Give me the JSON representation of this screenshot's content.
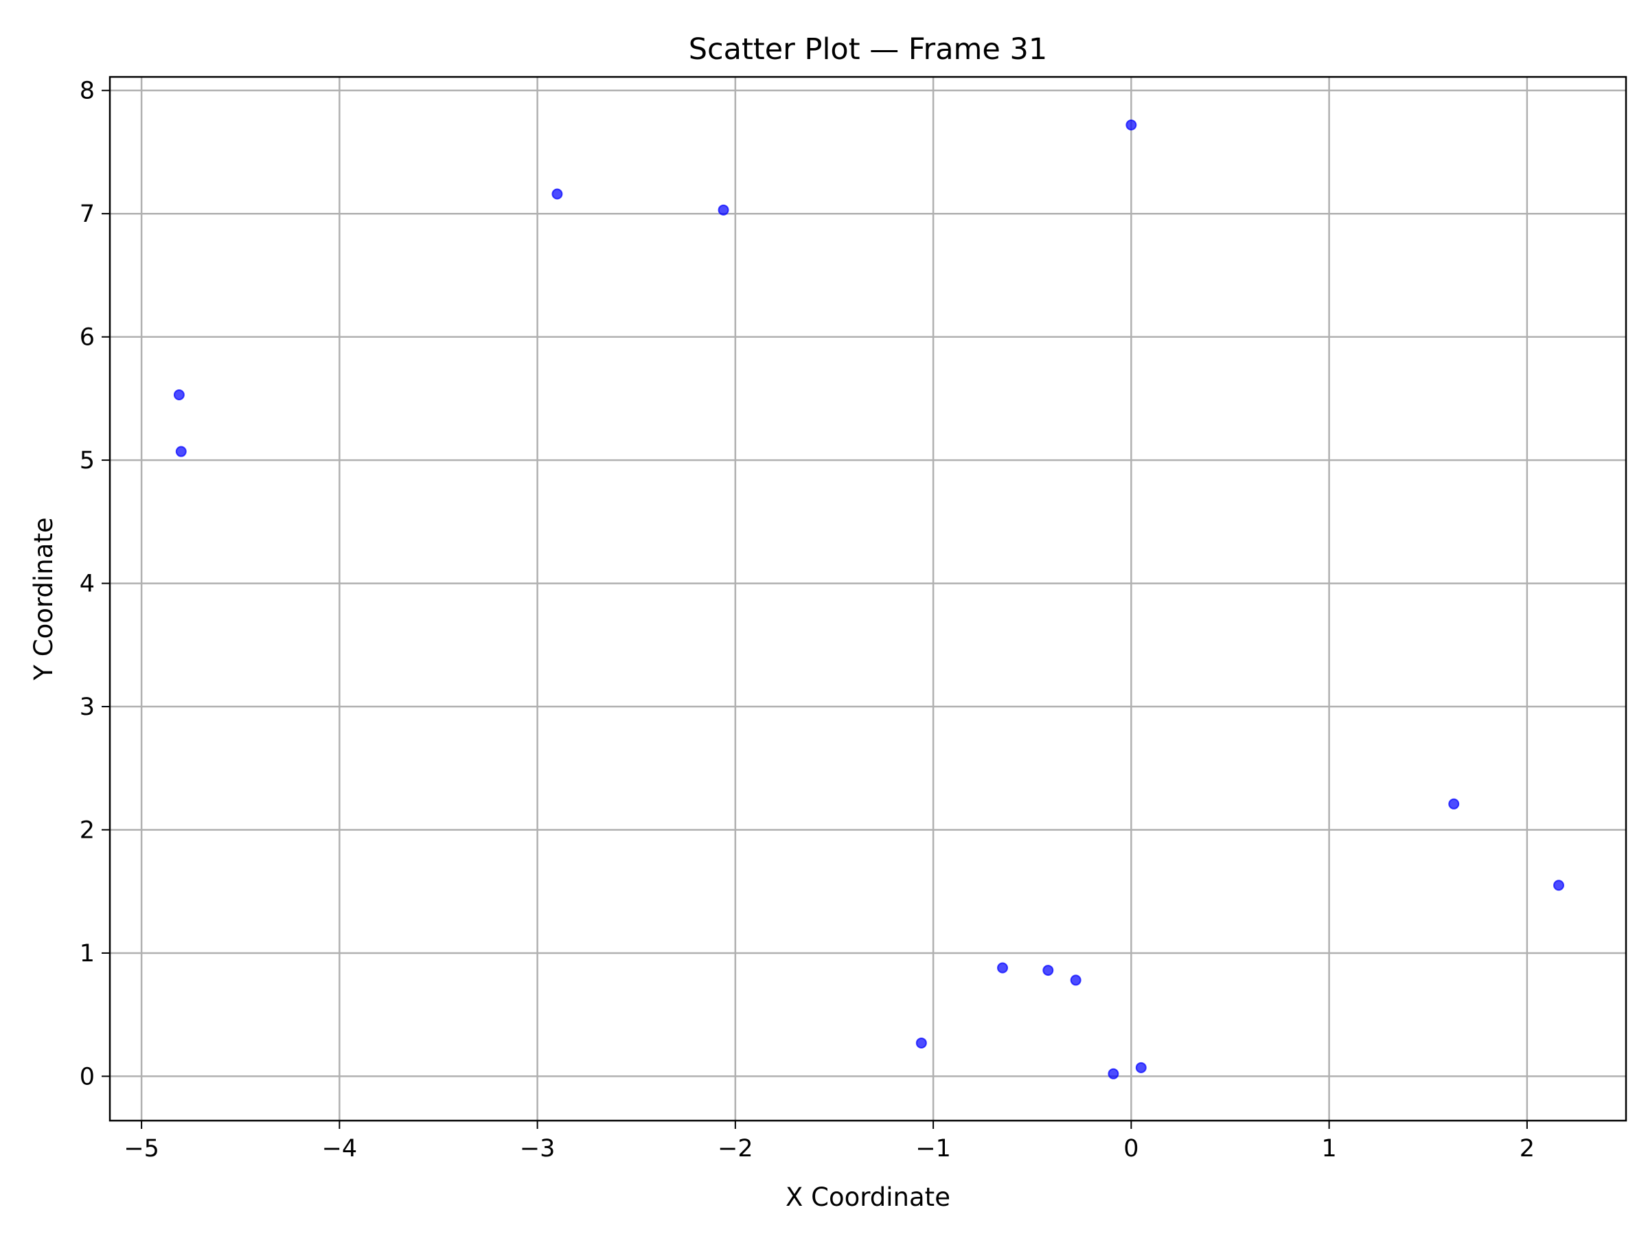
{
  "chart_data": {
    "type": "scatter",
    "title": "Scatter Plot — Frame 31",
    "xlabel": "X Coordinate",
    "ylabel": "Y Coordinate",
    "xlim": [
      -5.16,
      2.5
    ],
    "ylim": [
      -0.36,
      8.11
    ],
    "grid": true,
    "marker_color": "#0000ff",
    "marker_opacity": 0.7,
    "x_ticks": [
      {
        "value": -5,
        "label": "−5"
      },
      {
        "value": -4,
        "label": "−4"
      },
      {
        "value": -3,
        "label": "−3"
      },
      {
        "value": -2,
        "label": "−2"
      },
      {
        "value": -1,
        "label": "−1"
      },
      {
        "value": 0,
        "label": "0"
      },
      {
        "value": 1,
        "label": "1"
      },
      {
        "value": 2,
        "label": "2"
      }
    ],
    "y_ticks": [
      {
        "value": 0,
        "label": "0"
      },
      {
        "value": 1,
        "label": "1"
      },
      {
        "value": 2,
        "label": "2"
      },
      {
        "value": 3,
        "label": "3"
      },
      {
        "value": 4,
        "label": "4"
      },
      {
        "value": 5,
        "label": "5"
      },
      {
        "value": 6,
        "label": "6"
      },
      {
        "value": 7,
        "label": "7"
      },
      {
        "value": 8,
        "label": "8"
      }
    ],
    "points": [
      {
        "x": -4.81,
        "y": 5.53
      },
      {
        "x": -4.8,
        "y": 5.07
      },
      {
        "x": -2.9,
        "y": 7.16
      },
      {
        "x": -2.06,
        "y": 7.03
      },
      {
        "x": 0.0,
        "y": 7.72
      },
      {
        "x": 1.63,
        "y": 2.21
      },
      {
        "x": 2.16,
        "y": 1.55
      },
      {
        "x": -1.06,
        "y": 0.27
      },
      {
        "x": -0.65,
        "y": 0.88
      },
      {
        "x": -0.42,
        "y": 0.86
      },
      {
        "x": -0.28,
        "y": 0.78
      },
      {
        "x": -0.09,
        "y": 0.02
      },
      {
        "x": 0.05,
        "y": 0.07
      }
    ]
  }
}
